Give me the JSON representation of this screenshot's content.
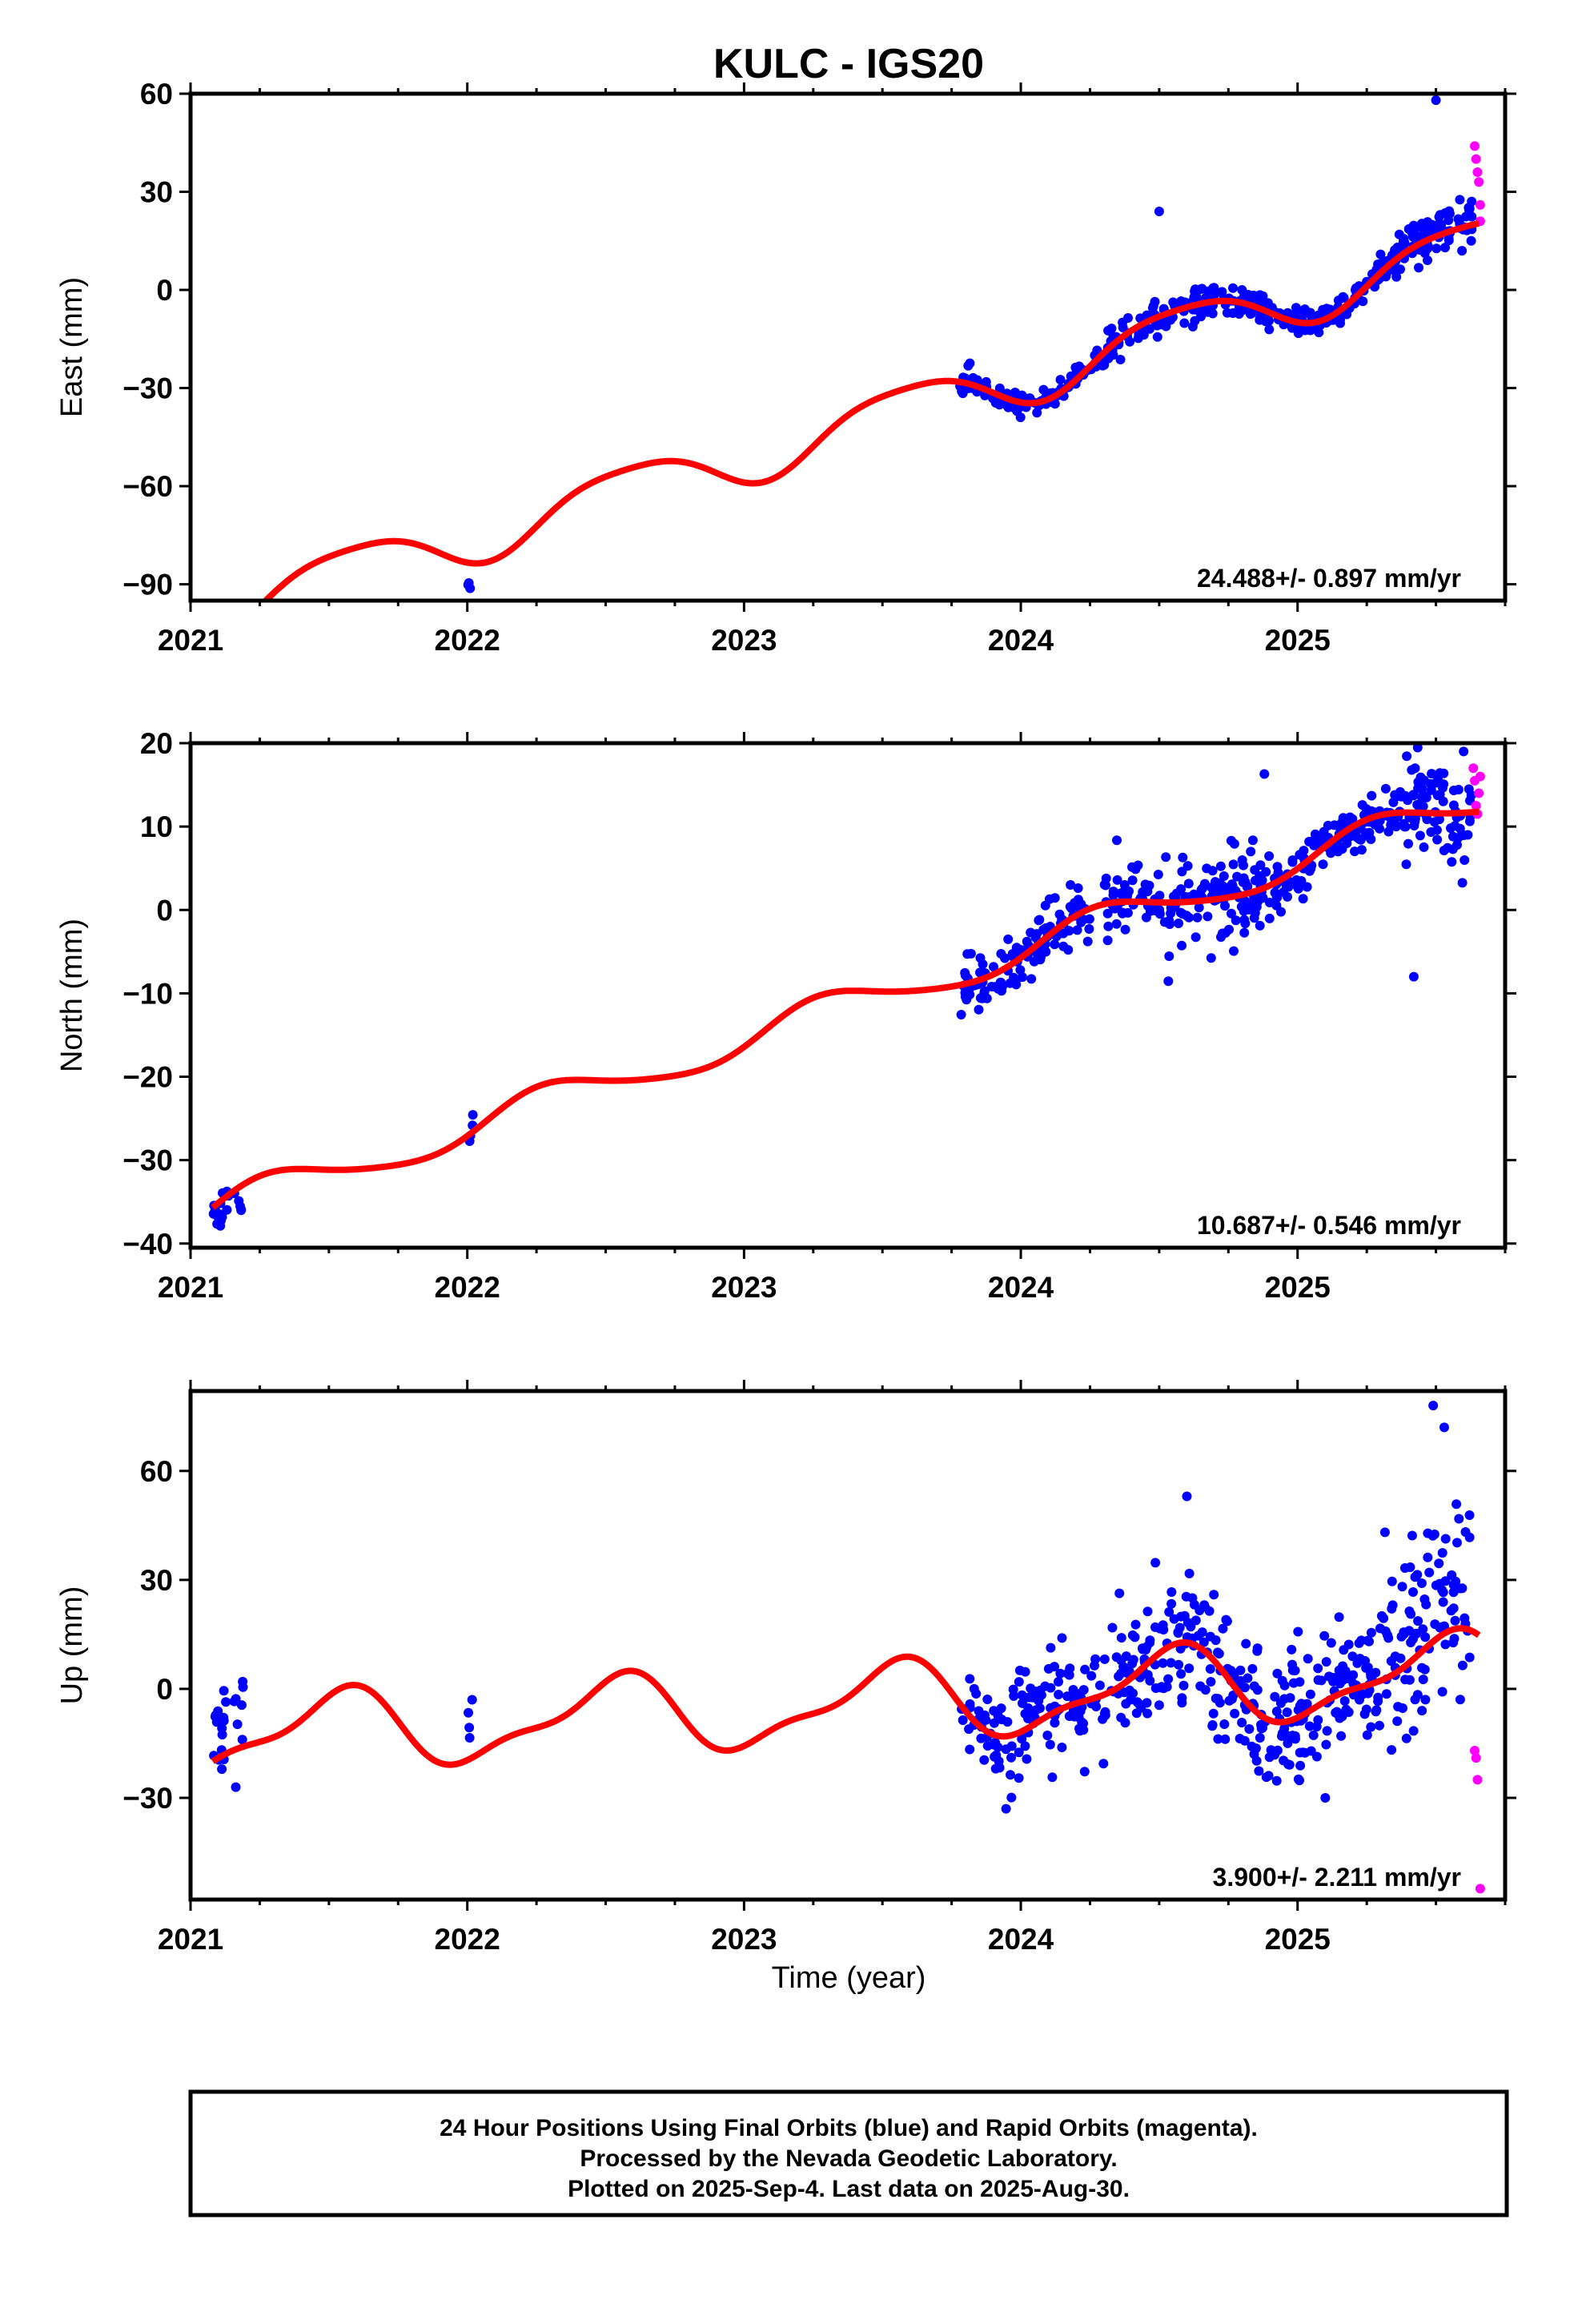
{
  "page": {
    "title": "KULC - IGS20",
    "xlabel": "Time (year)",
    "caption": [
      "24 Hour Positions Using Final Orbits (blue) and Rapid Orbits (magenta).",
      "Processed by the Nevada Geodetic Laboratory.",
      "Plotted on 2025-Sep-4. Last data on 2025-Aug-30."
    ]
  },
  "colors": {
    "final_orbit_points": "#0000ff",
    "rapid_orbit_points": "#ff00ff",
    "model_curve": "#ff0000",
    "frame": "#000000"
  },
  "chart_data": [
    {
      "type": "scatter",
      "ylabel": "East (mm)",
      "rate_label": "24.488+/- 0.897 mm/yr",
      "xlim": [
        2021.0,
        2025.75
      ],
      "ylim": [
        -95,
        60
      ],
      "xticks": [
        2021,
        2022,
        2023,
        2024,
        2025
      ],
      "yticks": [
        -90,
        -60,
        -30,
        0,
        30,
        60
      ],
      "ytick_labels": [
        "−90",
        "−60",
        "−30",
        "0",
        "30",
        "60"
      ],
      "trend": {
        "ref_year": 2024.0,
        "ref_value": -26.5,
        "rate": 24.488,
        "annual_amp": 8.0,
        "annual_phase": 0.33,
        "semiannual_amp": 1.5,
        "semiannual_phase": 0.2
      },
      "final_data_segments": [
        {
          "x_start": 2021.08,
          "x_end": 2021.19,
          "count": 22,
          "scatter": 1.5,
          "offset": 4.0
        },
        {
          "x_start": 2022.0,
          "x_end": 2022.02,
          "count": 4,
          "scatter": 1.0,
          "offset": -6.0
        },
        {
          "x_start": 2023.78,
          "x_end": 2024.3,
          "count": 120,
          "scatter": 1.8,
          "offset": 0.0
        },
        {
          "x_start": 2024.3,
          "x_end": 2024.95,
          "count": 170,
          "scatter": 2.8,
          "offset": 0.0
        },
        {
          "x_start": 2024.95,
          "x_end": 2025.35,
          "count": 110,
          "scatter": 2.0,
          "offset": 0.0
        },
        {
          "x_start": 2025.35,
          "x_end": 2025.63,
          "count": 90,
          "scatter": 4.0,
          "offset": 2.0
        }
      ],
      "final_outliers": [
        {
          "x": 2025.5,
          "y": 58
        },
        {
          "x": 2024.5,
          "y": 24
        },
        {
          "x": 2023.98,
          "y": -36
        }
      ],
      "rapid_points": [
        {
          "x": 2025.64,
          "y": 44
        },
        {
          "x": 2025.645,
          "y": 40
        },
        {
          "x": 2025.65,
          "y": 36
        },
        {
          "x": 2025.655,
          "y": 33
        },
        {
          "x": 2025.66,
          "y": 21
        },
        {
          "x": 2025.66,
          "y": 26
        }
      ],
      "seed": 11
    },
    {
      "type": "scatter",
      "ylabel": "North (mm)",
      "rate_label": "10.687+/- 0.546 mm/yr",
      "xlim": [
        2021.0,
        2025.75
      ],
      "ylim": [
        -40.5,
        20
      ],
      "xticks": [
        2021,
        2022,
        2023,
        2024,
        2025
      ],
      "yticks": [
        -40,
        -30,
        -20,
        -10,
        0,
        10,
        20
      ],
      "ytick_labels": [
        "−40",
        "−30",
        "−20",
        "−10",
        "0",
        "10",
        "20"
      ],
      "trend": {
        "ref_year": 2024.0,
        "ref_value": -4.8,
        "rate": 10.687,
        "annual_amp": 2.1,
        "annual_phase": 0.05,
        "semiannual_amp": 0.3,
        "semiannual_phase": 0.1
      },
      "final_data_segments": [
        {
          "x_start": 2021.08,
          "x_end": 2021.19,
          "count": 22,
          "scatter": 1.1,
          "offset": -0.5
        },
        {
          "x_start": 2022.0,
          "x_end": 2022.02,
          "count": 4,
          "scatter": 0.9,
          "offset": 0.0
        },
        {
          "x_start": 2023.78,
          "x_end": 2024.25,
          "count": 120,
          "scatter": 1.7,
          "offset": 0.0
        },
        {
          "x_start": 2024.3,
          "x_end": 2024.9,
          "count": 170,
          "scatter": 2.6,
          "offset": 0.0
        },
        {
          "x_start": 2024.9,
          "x_end": 2025.38,
          "count": 130,
          "scatter": 1.4,
          "offset": 0.0
        },
        {
          "x_start": 2025.38,
          "x_end": 2025.63,
          "count": 80,
          "scatter": 3.2,
          "offset": 0.5
        }
      ],
      "final_outliers": [
        {
          "x": 2025.6,
          "y": 19
        },
        {
          "x": 2024.88,
          "y": 16.3
        },
        {
          "x": 2025.42,
          "y": -8
        }
      ],
      "rapid_points": [
        {
          "x": 2025.635,
          "y": 17
        },
        {
          "x": 2025.64,
          "y": 15.5
        },
        {
          "x": 2025.645,
          "y": 12.5
        },
        {
          "x": 2025.65,
          "y": 11.5
        },
        {
          "x": 2025.655,
          "y": 14
        },
        {
          "x": 2025.66,
          "y": 16
        }
      ],
      "seed": 23
    },
    {
      "type": "scatter",
      "ylabel": "Up (mm)",
      "rate_label": "3.900+/- 2.211 mm/yr",
      "xlim": [
        2021.0,
        2025.75
      ],
      "ylim": [
        -58,
        82
      ],
      "xticks": [
        2021,
        2022,
        2023,
        2024,
        2025
      ],
      "yticks": [
        -30,
        0,
        30,
        60
      ],
      "ytick_labels": [
        "−30",
        "0",
        "30",
        "60"
      ],
      "trend": {
        "ref_year": 2024.0,
        "ref_value": -2.0,
        "rate": 3.9,
        "annual_amp": 10.0,
        "annual_phase": 0.28,
        "semiannual_amp": 3.5,
        "semiannual_phase": 0.0
      },
      "final_data_segments": [
        {
          "x_start": 2021.08,
          "x_end": 2021.19,
          "count": 24,
          "scatter": 8.0,
          "offset": 6.0
        },
        {
          "x_start": 2022.0,
          "x_end": 2022.02,
          "count": 4,
          "scatter": 4.0,
          "offset": 9.0
        },
        {
          "x_start": 2023.78,
          "x_end": 2024.3,
          "count": 130,
          "scatter": 8.0,
          "offset": 0.0
        },
        {
          "x_start": 2024.3,
          "x_end": 2025.3,
          "count": 300,
          "scatter": 8.5,
          "offset": 0.0
        },
        {
          "x_start": 2025.3,
          "x_end": 2025.63,
          "count": 100,
          "scatter": 14.0,
          "offset": 8.0
        }
      ],
      "final_outliers": [
        {
          "x": 2025.49,
          "y": 78
        },
        {
          "x": 2025.53,
          "y": 72
        },
        {
          "x": 2024.6,
          "y": 53
        },
        {
          "x": 2025.1,
          "y": -30
        }
      ],
      "rapid_points": [
        {
          "x": 2025.64,
          "y": -17
        },
        {
          "x": 2025.645,
          "y": -19
        },
        {
          "x": 2025.65,
          "y": -25
        },
        {
          "x": 2025.66,
          "y": -55
        }
      ],
      "seed": 37
    }
  ]
}
